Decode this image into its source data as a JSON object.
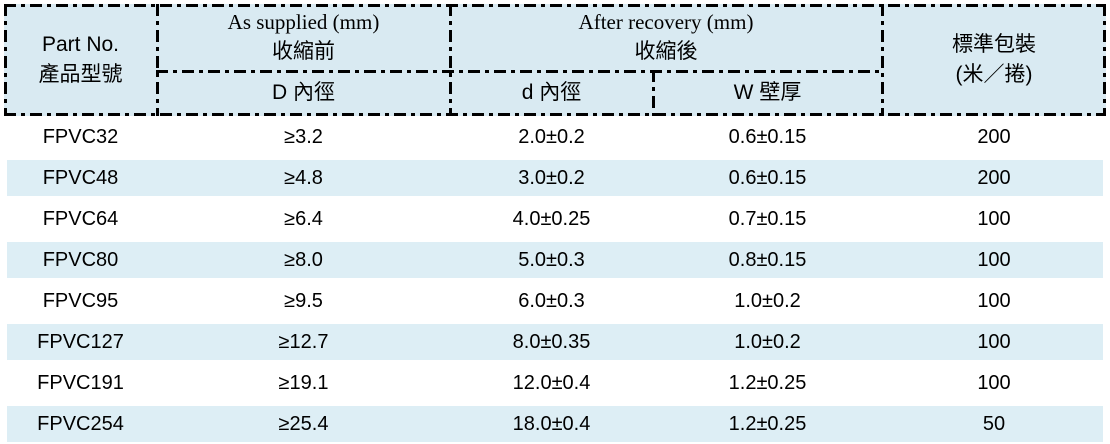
{
  "table": {
    "header": {
      "part_no_en": "Part No.",
      "part_no_zh": "產品型號",
      "as_supplied_en": "As supplied (mm)",
      "as_supplied_zh": "收縮前",
      "after_recovery_en": "After recovery (mm)",
      "after_recovery_zh": "收縮後",
      "sub_d_inner_diameter": "D 內徑",
      "sub_d_recovered_inner_diameter": "d 內徑",
      "sub_w_wall_thickness": "W 壁厚",
      "packaging_zh": "標準包裝",
      "packaging_unit": "(米／捲)"
    },
    "rows": [
      {
        "part_no": "FPVC32",
        "as_supplied_d": "≥3.2",
        "recovered_d": "2.0±0.2",
        "wall_w": "0.6±0.15",
        "packaging": "200"
      },
      {
        "part_no": "FPVC48",
        "as_supplied_d": "≥4.8",
        "recovered_d": "3.0±0.2",
        "wall_w": "0.6±0.15",
        "packaging": "200"
      },
      {
        "part_no": "FPVC64",
        "as_supplied_d": "≥6.4",
        "recovered_d": "4.0±0.25",
        "wall_w": "0.7±0.15",
        "packaging": "100"
      },
      {
        "part_no": "FPVC80",
        "as_supplied_d": "≥8.0",
        "recovered_d": "5.0±0.3",
        "wall_w": "0.8±0.15",
        "packaging": "100"
      },
      {
        "part_no": "FPVC95",
        "as_supplied_d": "≥9.5",
        "recovered_d": "6.0±0.3",
        "wall_w": "1.0±0.2",
        "packaging": "100"
      },
      {
        "part_no": "FPVC127",
        "as_supplied_d": "≥12.7",
        "recovered_d": "8.0±0.35",
        "wall_w": "1.0±0.2",
        "packaging": "100"
      },
      {
        "part_no": "FPVC191",
        "as_supplied_d": "≥19.1",
        "recovered_d": "12.0±0.4",
        "wall_w": "1.2±0.25",
        "packaging": "100"
      },
      {
        "part_no": "FPVC254",
        "as_supplied_d": "≥25.4",
        "recovered_d": "18.0±0.4",
        "wall_w": "1.2±0.25",
        "packaging": "50"
      }
    ]
  },
  "colors": {
    "header_bg": "#d9eaf2",
    "row_alt_bg": "#ddeef5",
    "border": "#000000"
  }
}
